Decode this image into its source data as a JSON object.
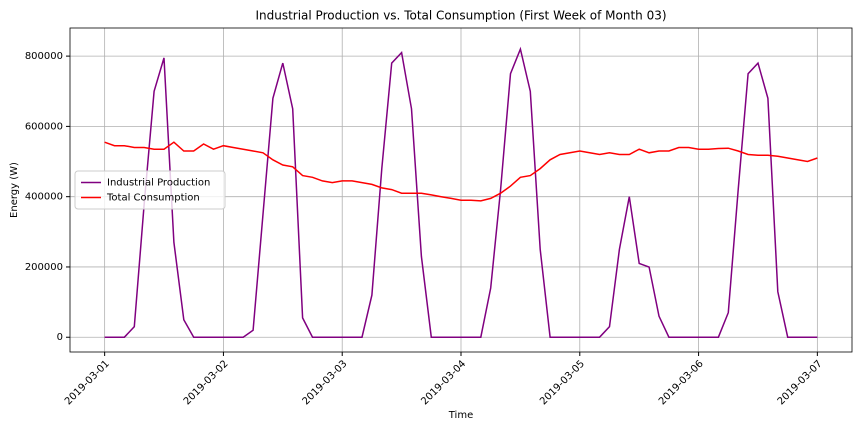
{
  "chart_data": {
    "type": "line",
    "title": "Industrial Production vs. Total Consumption (First Week of Month 03)",
    "x_label": "Time",
    "y_label": "Energy (W)",
    "x": [
      "2019-03-01 00:00",
      "2019-03-01 02:00",
      "2019-03-01 04:00",
      "2019-03-01 06:00",
      "2019-03-01 08:00",
      "2019-03-01 10:00",
      "2019-03-01 12:00",
      "2019-03-01 14:00",
      "2019-03-01 16:00",
      "2019-03-01 18:00",
      "2019-03-01 20:00",
      "2019-03-01 22:00",
      "2019-03-02 00:00",
      "2019-03-02 02:00",
      "2019-03-02 04:00",
      "2019-03-02 06:00",
      "2019-03-02 08:00",
      "2019-03-02 10:00",
      "2019-03-02 12:00",
      "2019-03-02 14:00",
      "2019-03-02 16:00",
      "2019-03-02 18:00",
      "2019-03-02 20:00",
      "2019-03-02 22:00",
      "2019-03-03 00:00",
      "2019-03-03 02:00",
      "2019-03-03 04:00",
      "2019-03-03 06:00",
      "2019-03-03 08:00",
      "2019-03-03 10:00",
      "2019-03-03 12:00",
      "2019-03-03 14:00",
      "2019-03-03 16:00",
      "2019-03-03 18:00",
      "2019-03-03 20:00",
      "2019-03-03 22:00",
      "2019-03-04 00:00",
      "2019-03-04 02:00",
      "2019-03-04 04:00",
      "2019-03-04 06:00",
      "2019-03-04 08:00",
      "2019-03-04 10:00",
      "2019-03-04 12:00",
      "2019-03-04 14:00",
      "2019-03-04 16:00",
      "2019-03-04 18:00",
      "2019-03-04 20:00",
      "2019-03-04 22:00",
      "2019-03-05 00:00",
      "2019-03-05 02:00",
      "2019-03-05 04:00",
      "2019-03-05 06:00",
      "2019-03-05 08:00",
      "2019-03-05 10:00",
      "2019-03-05 12:00",
      "2019-03-05 14:00",
      "2019-03-05 16:00",
      "2019-03-05 18:00",
      "2019-03-05 20:00",
      "2019-03-05 22:00",
      "2019-03-06 00:00",
      "2019-03-06 02:00",
      "2019-03-06 04:00",
      "2019-03-06 06:00",
      "2019-03-06 08:00",
      "2019-03-06 10:00",
      "2019-03-06 12:00",
      "2019-03-06 14:00",
      "2019-03-06 16:00",
      "2019-03-06 18:00",
      "2019-03-06 20:00",
      "2019-03-06 22:00",
      "2019-03-07 00:00"
    ],
    "series": [
      {
        "name": "Industrial Production",
        "color": "#800080",
        "values": [
          0,
          0,
          0,
          30000,
          380000,
          700000,
          795000,
          270000,
          50000,
          0,
          0,
          0,
          0,
          0,
          0,
          20000,
          350000,
          680000,
          780000,
          650000,
          55000,
          0,
          0,
          0,
          0,
          0,
          0,
          120000,
          480000,
          780000,
          810000,
          650000,
          230000,
          0,
          0,
          0,
          0,
          0,
          0,
          140000,
          420000,
          750000,
          820000,
          700000,
          250000,
          0,
          0,
          0,
          0,
          0,
          0,
          30000,
          250000,
          400000,
          210000,
          200000,
          60000,
          0,
          0,
          0,
          0,
          0,
          0,
          70000,
          420000,
          750000,
          780000,
          680000,
          130000,
          0,
          0,
          0,
          0
        ]
      },
      {
        "name": "Total Consumption",
        "color": "#ff0000",
        "values": [
          555000,
          545000,
          545000,
          540000,
          540000,
          535000,
          535000,
          555000,
          530000,
          530000,
          550000,
          535000,
          545000,
          540000,
          535000,
          530000,
          525000,
          505000,
          490000,
          485000,
          460000,
          455000,
          445000,
          440000,
          445000,
          445000,
          440000,
          435000,
          425000,
          420000,
          410000,
          410000,
          410000,
          405000,
          400000,
          395000,
          390000,
          390000,
          388000,
          395000,
          410000,
          430000,
          455000,
          460000,
          480000,
          505000,
          520000,
          525000,
          530000,
          525000,
          520000,
          525000,
          520000,
          520000,
          535000,
          525000,
          530000,
          530000,
          540000,
          540000,
          535000,
          535000,
          537000,
          538000,
          530000,
          520000,
          518000,
          518000,
          515000,
          510000,
          505000,
          500000,
          510000
        ]
      }
    ],
    "xlim": [
      "2019-02-28 17:00",
      "2019-03-07 07:00"
    ],
    "xticks": [
      "2019-03-01",
      "2019-03-02",
      "2019-03-03",
      "2019-03-04",
      "2019-03-05",
      "2019-03-06",
      "2019-03-07"
    ],
    "ylim": [
      -42000,
      880000
    ],
    "yticks": [
      0,
      200000,
      400000,
      600000,
      800000
    ],
    "grid": true,
    "legend": "center left"
  }
}
